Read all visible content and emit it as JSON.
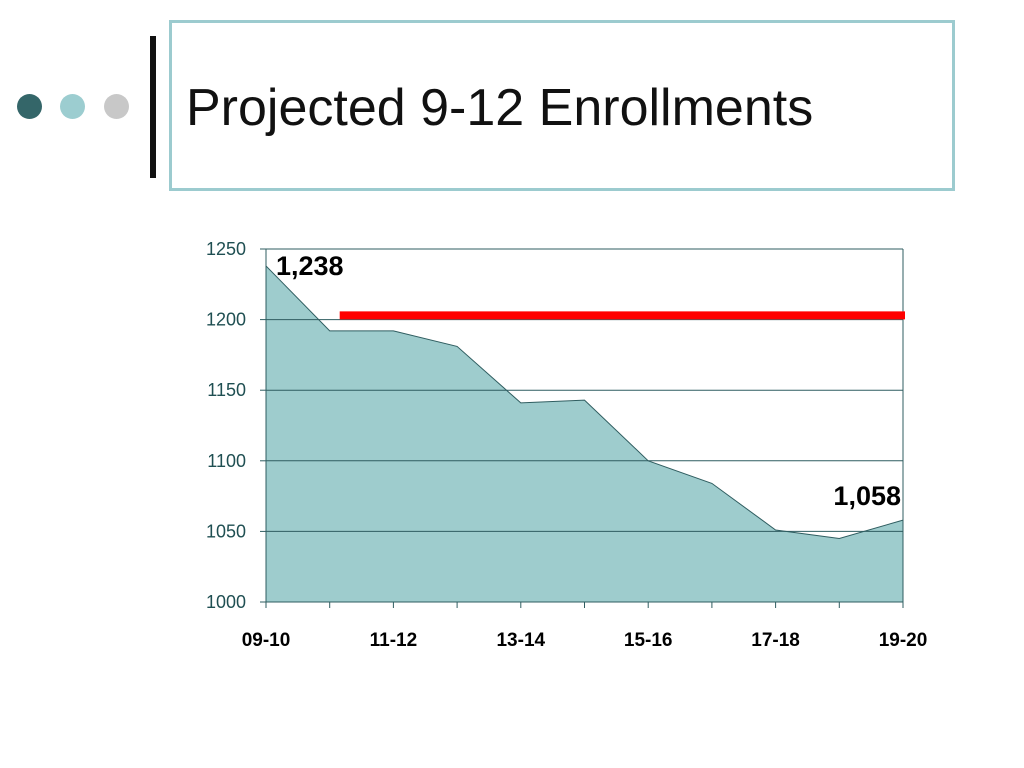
{
  "slide": {
    "title": "Projected 9-12 Enrollments",
    "dots": [
      {
        "color": "#346669"
      },
      {
        "color": "#9ccdd0"
      },
      {
        "color": "#c8c8c8"
      }
    ]
  },
  "chart_data": {
    "type": "area",
    "title": "",
    "xlabel": "",
    "ylabel": "",
    "x": [
      "09-10",
      "10-11",
      "11-12",
      "12-13",
      "13-14",
      "14-15",
      "15-16",
      "16-17",
      "17-18",
      "18-19",
      "19-20"
    ],
    "x_tick_labels": [
      "09-10",
      "11-12",
      "13-14",
      "15-16",
      "17-18",
      "19-20"
    ],
    "series": [
      {
        "values": [
          1238,
          1192,
          1192,
          1181,
          1141,
          1143,
          1100,
          1084,
          1051,
          1045,
          1058
        ],
        "fill_color": "#9ecccd",
        "line_color": "#2f5d60"
      }
    ],
    "reference_line": {
      "value": 1203,
      "x_start": "10-11",
      "x_end": "19-20",
      "color": "#ff0000"
    },
    "data_labels": [
      {
        "x": "09-10",
        "text": "1,238"
      },
      {
        "x": "19-20",
        "text": "1,058"
      }
    ],
    "ylim": [
      1000,
      1250
    ],
    "y_ticks": [
      1000,
      1050,
      1100,
      1150,
      1200,
      1250
    ],
    "grid": true,
    "axis_color": "#2f5d60",
    "tick_label_color": "#1f4f52"
  }
}
